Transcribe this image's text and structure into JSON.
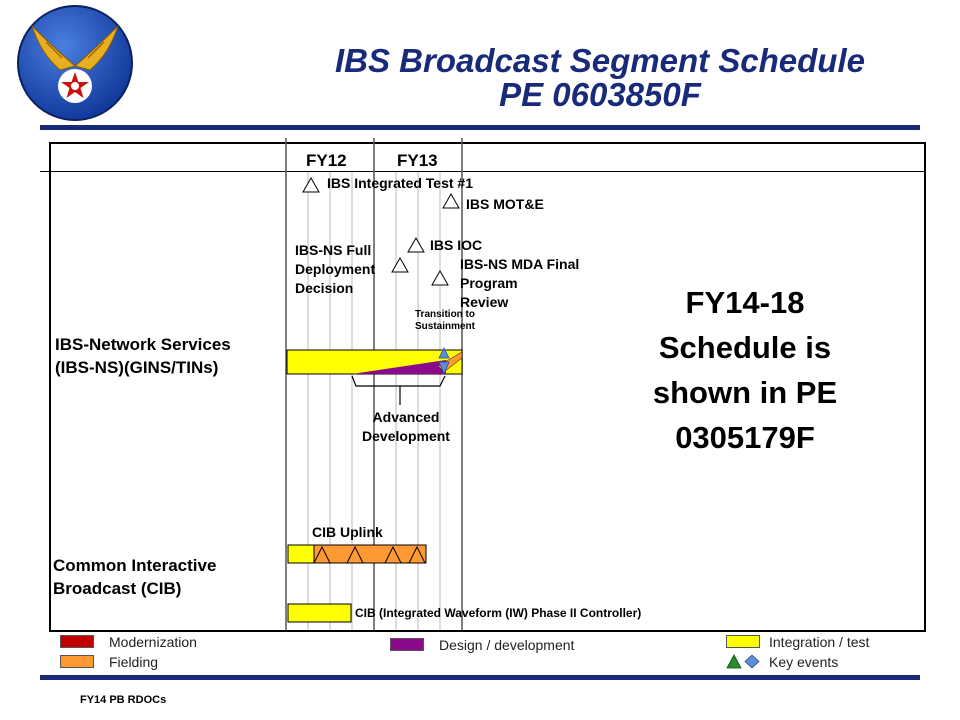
{
  "header": {
    "title_line1": "IBS Broadcast Segment Schedule",
    "title_line2": "PE 0603850F",
    "logo": "usaf-hap-arnold-wings-emblem",
    "accent_color": "#1a2a7a"
  },
  "timeline": {
    "fiscal_years": [
      "FY12",
      "FY13"
    ]
  },
  "rows": {
    "ibs_ns": {
      "label_line1": "IBS-Network  Services",
      "label_line2": "(IBS-NS)(GINS/TINs)"
    },
    "cib": {
      "label_line1": "Common Interactive",
      "label_line2": "Broadcast (CIB)"
    }
  },
  "events": {
    "integrated_test": "IBS Integrated Test #1",
    "mote": "IBS MOT&E",
    "fdd_line1": "IBS-NS Full",
    "fdd_line2": "Deployment",
    "fdd_line3": "Decision",
    "ioc": "IBS IOC",
    "mda_line1": "IBS-NS MDA Final",
    "mda_line2": "Program",
    "mda_line3": "Review",
    "transition_line1": "Transition to",
    "transition_line2": "Sustainment",
    "adv_line1": "Advanced",
    "adv_line2": "Development",
    "cib_uplink": "CIB Uplink",
    "cib_iw": "CIB (Integrated Waveform (IW) Phase II Controller)"
  },
  "note": {
    "line1": "FY14-18",
    "line2": "Schedule is",
    "line3": "shown in PE",
    "line4": "0305179F"
  },
  "legend": {
    "modernization": "Modernization",
    "fielding": "Fielding",
    "design": "Design / development",
    "integration": "Integration  / test",
    "key_events": "Key events",
    "colors": {
      "modernization": "#c00000",
      "fielding": "#ff9933",
      "design": "#8b0a8b",
      "integration": "#ffff00",
      "key_event_green": "#2e8b2e",
      "key_event_blue": "#5b8fd6"
    }
  },
  "footer": {
    "text": "FY14 PB RDOCs"
  }
}
